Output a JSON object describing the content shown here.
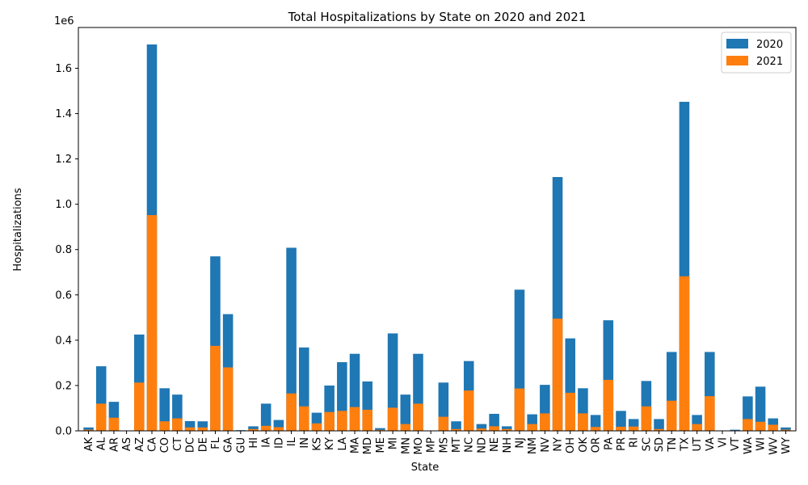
{
  "chart_data": {
    "type": "bar",
    "title": "Total Hospitalizations by State on 2020 and 2021",
    "xlabel": "State",
    "ylabel": "Hospitalizations",
    "y_offset_label": "1e6",
    "ylim": [
      0,
      1780000
    ],
    "yticks": [
      0,
      200000,
      400000,
      600000,
      800000,
      1000000,
      1200000,
      1400000,
      1600000
    ],
    "ytick_labels": [
      "0.0",
      "0.2",
      "0.4",
      "0.6",
      "0.8",
      "1.0",
      "1.2",
      "1.4",
      "1.6"
    ],
    "grid": false,
    "legend_position": "top-right",
    "categories": [
      "AK",
      "AL",
      "AR",
      "AS",
      "AZ",
      "CA",
      "CO",
      "CT",
      "DC",
      "DE",
      "FL",
      "GA",
      "GU",
      "HI",
      "IA",
      "ID",
      "IL",
      "IN",
      "KS",
      "KY",
      "LA",
      "MA",
      "MD",
      "ME",
      "MI",
      "MN",
      "MO",
      "MP",
      "MS",
      "MT",
      "NC",
      "ND",
      "NE",
      "NH",
      "NJ",
      "NM",
      "NV",
      "NY",
      "OH",
      "OK",
      "OR",
      "PA",
      "PR",
      "RI",
      "SC",
      "SD",
      "TN",
      "TX",
      "UT",
      "VA",
      "VI",
      "VT",
      "WA",
      "WI",
      "WV",
      "WY"
    ],
    "series": [
      {
        "name": "2020",
        "color": "#1f77b4",
        "values": [
          15000,
          285000,
          128000,
          0,
          425000,
          1705000,
          188000,
          160000,
          43000,
          42000,
          770000,
          515000,
          3000,
          20000,
          120000,
          48000,
          808000,
          368000,
          80000,
          200000,
          303000,
          340000,
          218000,
          12000,
          430000,
          160000,
          340000,
          0,
          213000,
          42000,
          308000,
          30000,
          75000,
          20000,
          623000,
          73000,
          203000,
          1120000,
          408000,
          188000,
          70000,
          488000,
          88000,
          52000,
          220000,
          52000,
          348000,
          1452000,
          70000,
          348000,
          0,
          5000,
          152000,
          195000,
          55000,
          15000
        ]
      },
      {
        "name": "2021",
        "color": "#ff7f0e",
        "values": [
          5000,
          120000,
          58000,
          0,
          213000,
          952000,
          42000,
          55000,
          15000,
          15000,
          375000,
          280000,
          1000,
          8000,
          22000,
          16000,
          165000,
          108000,
          33000,
          83000,
          88000,
          105000,
          93000,
          4000,
          102000,
          30000,
          120000,
          0,
          62000,
          8000,
          178000,
          10000,
          20000,
          8000,
          187000,
          30000,
          77000,
          495000,
          168000,
          77000,
          17000,
          225000,
          18000,
          19000,
          108000,
          8000,
          133000,
          682000,
          30000,
          153000,
          0,
          2000,
          52000,
          40000,
          27000,
          5000
        ]
      }
    ]
  }
}
